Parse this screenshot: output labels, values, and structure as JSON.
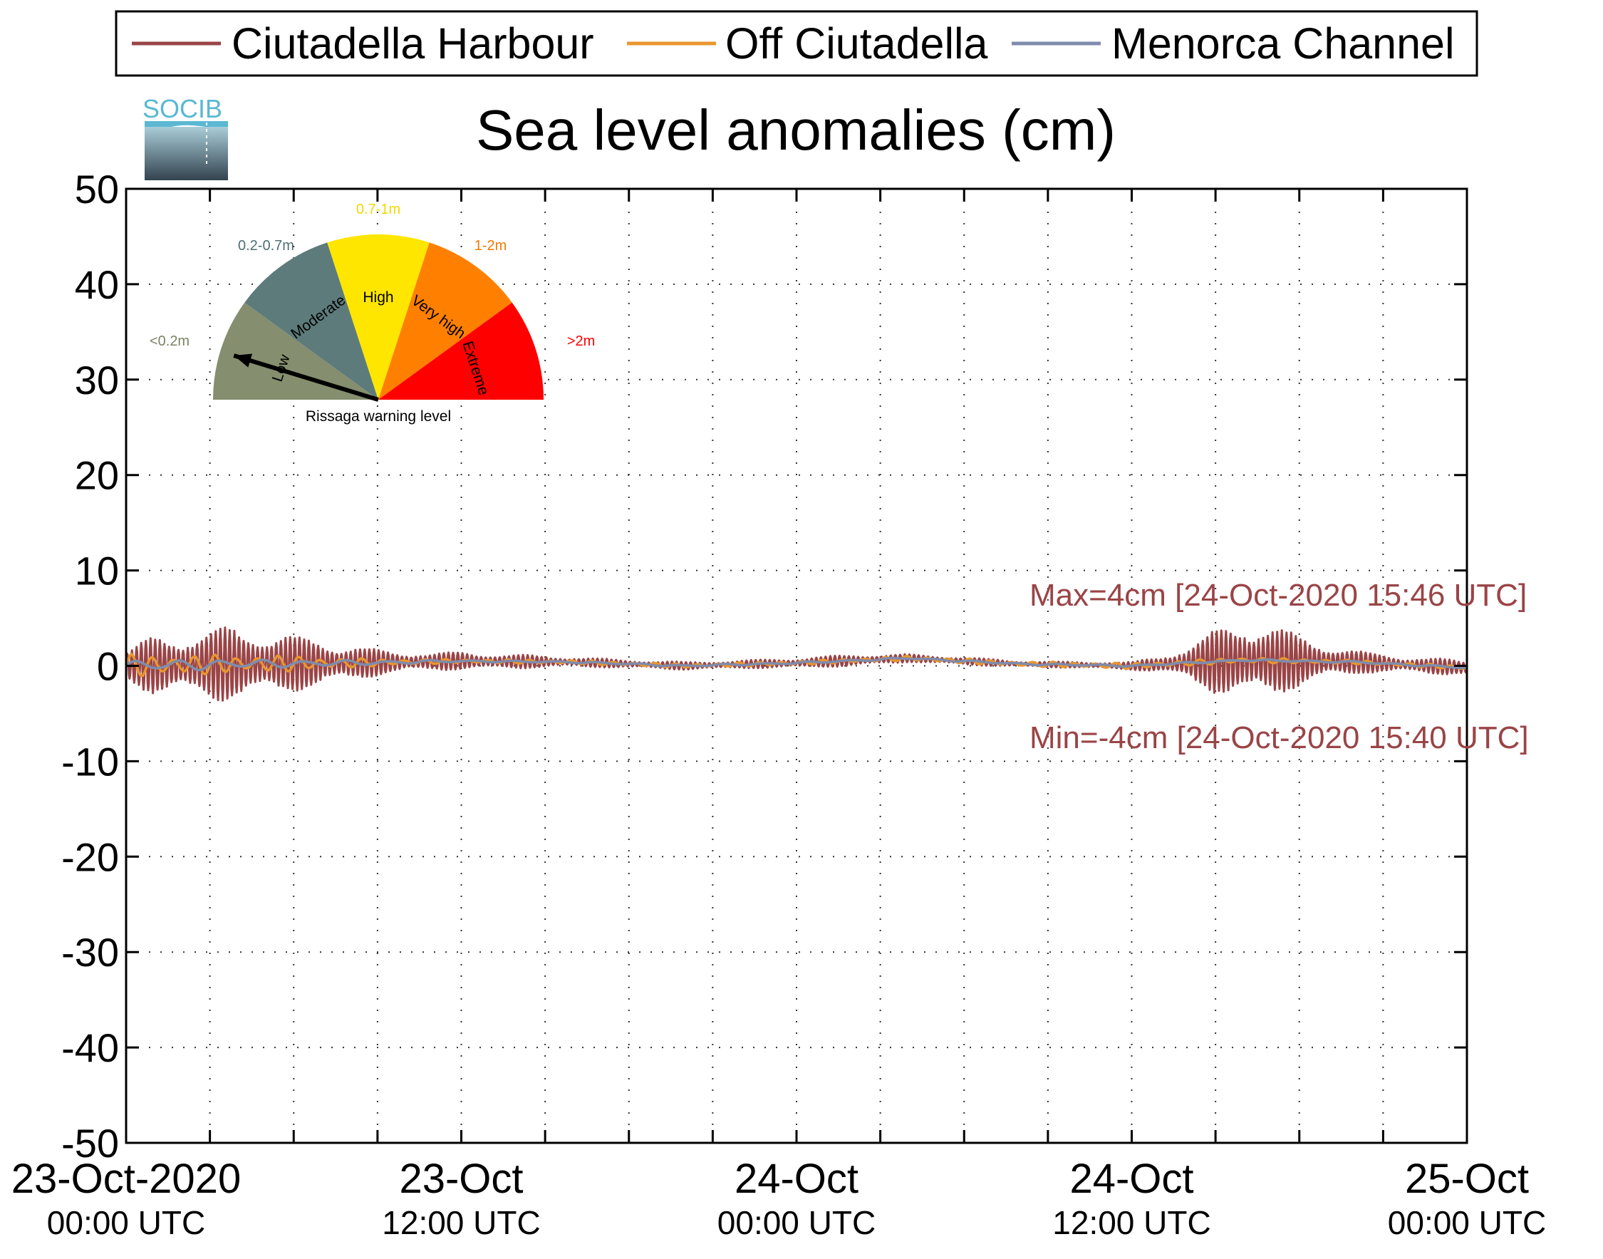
{
  "legend": {
    "items": [
      {
        "label": "Ciutadella Harbour",
        "color": "#9a4446"
      },
      {
        "label": "Off Ciutadella",
        "color": "#e8962e"
      },
      {
        "label": "Menorca Channel",
        "color": "#7f8cac"
      }
    ]
  },
  "logo": {
    "text": "SOCIB"
  },
  "chart_data": {
    "type": "line",
    "title": "Sea level anomalies (cm)",
    "xlabel": "",
    "ylabel": "",
    "ylim": [
      -50,
      50
    ],
    "yticks": [
      50,
      40,
      30,
      20,
      10,
      0,
      -10,
      -20,
      -30,
      -40,
      -50
    ],
    "xlim": [
      "2020-10-23 00:00 UTC",
      "2020-10-25 00:00 UTC"
    ],
    "x_unit": "hours from 23-Oct-2020 00:00 UTC",
    "xticks": [
      {
        "hours": 0,
        "date": "23-Oct-2020",
        "time": "00:00 UTC"
      },
      {
        "hours": 12,
        "date": "23-Oct",
        "time": "12:00 UTC"
      },
      {
        "hours": 24,
        "date": "24-Oct",
        "time": "00:00 UTC"
      },
      {
        "hours": 36,
        "date": "24-Oct",
        "time": "12:00 UTC"
      },
      {
        "hours": 48,
        "date": "25-Oct",
        "time": "00:00 UTC"
      }
    ],
    "minor_xticks_hours": [
      3,
      6,
      9,
      15,
      18,
      21,
      27,
      30,
      33,
      39,
      42,
      45
    ],
    "grid": true,
    "series": [
      {
        "name": "Ciutadella Harbour",
        "color": "#9a4446",
        "envelope_hours": [
          0,
          1,
          2,
          3,
          4,
          5,
          6,
          7,
          8,
          9,
          10,
          11,
          12,
          14,
          16,
          18,
          20,
          22,
          24,
          26,
          28,
          30,
          32,
          34,
          36,
          37,
          38,
          39,
          40,
          41,
          42,
          43,
          44,
          45,
          46,
          47,
          48
        ],
        "envelope_cm": [
          1.5,
          3.0,
          3.2,
          3.6,
          3.8,
          3.2,
          2.8,
          2.4,
          1.8,
          1.3,
          1.0,
          0.9,
          0.9,
          0.7,
          0.5,
          0.4,
          0.4,
          0.4,
          0.5,
          0.6,
          0.4,
          0.4,
          0.3,
          0.3,
          0.4,
          0.8,
          1.8,
          3.2,
          4.0,
          3.6,
          2.6,
          1.8,
          1.2,
          0.9,
          0.8,
          0.8,
          0.7
        ],
        "period_minutes": 10
      },
      {
        "name": "Off Ciutadella",
        "color": "#e8962e",
        "envelope_hours": [
          0,
          2,
          4,
          6,
          8,
          10,
          12,
          24,
          36,
          40,
          44,
          48
        ],
        "envelope_cm": [
          1.2,
          1.1,
          1.0,
          0.8,
          0.5,
          0.3,
          0.2,
          0.2,
          0.3,
          0.3,
          0.2,
          0.2
        ],
        "period_minutes": 45
      },
      {
        "name": "Menorca Channel",
        "color": "#7f8cac",
        "envelope_hours": [
          0,
          2,
          4,
          6,
          8,
          10,
          12,
          24,
          36,
          40,
          44,
          48
        ],
        "envelope_cm": [
          0.6,
          0.6,
          0.5,
          0.4,
          0.3,
          0.2,
          0.1,
          0.1,
          0.1,
          0.1,
          0.1,
          0.1
        ],
        "period_minutes": 90
      }
    ],
    "baseline_hours": [
      0,
      4,
      8,
      12,
      16,
      20,
      24,
      28,
      32,
      36,
      40,
      44,
      48
    ],
    "baseline_cm": [
      0.0,
      0.2,
      0.3,
      0.5,
      0.4,
      0.0,
      0.3,
      0.8,
      0.2,
      0.0,
      0.6,
      0.4,
      -0.2
    ],
    "annotations": {
      "max": "Max=4cm [24-Oct-2020 15:46 UTC]",
      "min": "Min=-4cm [24-Oct-2020 15:40 UTC]"
    }
  },
  "gauge": {
    "caption": "Rissaga warning level",
    "needle_level": "Low",
    "needle_angle_deg": 17,
    "levels": [
      {
        "name": "Low",
        "range": "<0.2m",
        "color": "#858e6e",
        "range_color": "#7a8263"
      },
      {
        "name": "Moderate",
        "range": "0.2-0.7m",
        "color": "#5e7b7b",
        "range_color": "#4f6e73"
      },
      {
        "name": "High",
        "range": "0.7-1m",
        "color": "#ffe600",
        "range_color": "#f2d900"
      },
      {
        "name": "Very high",
        "range": "1-2m",
        "color": "#ff8000",
        "range_color": "#f07b00"
      },
      {
        "name": "Extreme",
        "range": ">2m",
        "color": "#ff0000",
        "range_color": "#ff0000"
      }
    ]
  }
}
